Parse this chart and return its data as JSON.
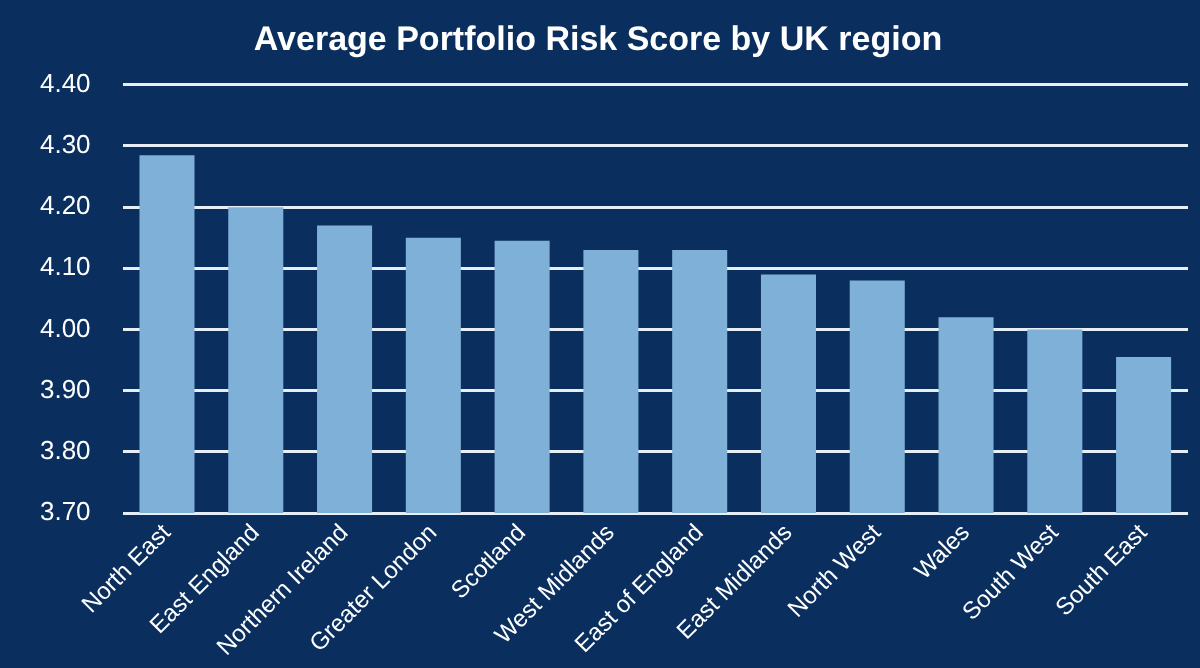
{
  "chart_data": {
    "type": "bar",
    "title": "Average Portfolio Risk Score by UK region",
    "categories": [
      "North East",
      "East England",
      "Northern Ireland",
      "Greater London",
      "Scotland",
      "West Midlands",
      "East of England",
      "East Midlands",
      "North West",
      "Wales",
      "South West",
      "South East"
    ],
    "values": [
      4.285,
      4.2,
      4.17,
      4.15,
      4.145,
      4.13,
      4.13,
      4.09,
      4.08,
      4.02,
      4.0,
      3.955
    ],
    "color": "#7fb0d8",
    "ylim": [
      3.7,
      4.4
    ],
    "yticks": [
      {
        "value": 3.7,
        "label": "3.70"
      },
      {
        "value": 3.8,
        "label": "3.80"
      },
      {
        "value": 3.9,
        "label": "3.90"
      },
      {
        "value": 4.0,
        "label": "4.00"
      },
      {
        "value": 4.1,
        "label": "4.10"
      },
      {
        "value": 4.2,
        "label": "4.20"
      },
      {
        "value": 4.3,
        "label": "4.30"
      },
      {
        "value": 4.4,
        "label": "4.40"
      }
    ],
    "grid": "y"
  }
}
